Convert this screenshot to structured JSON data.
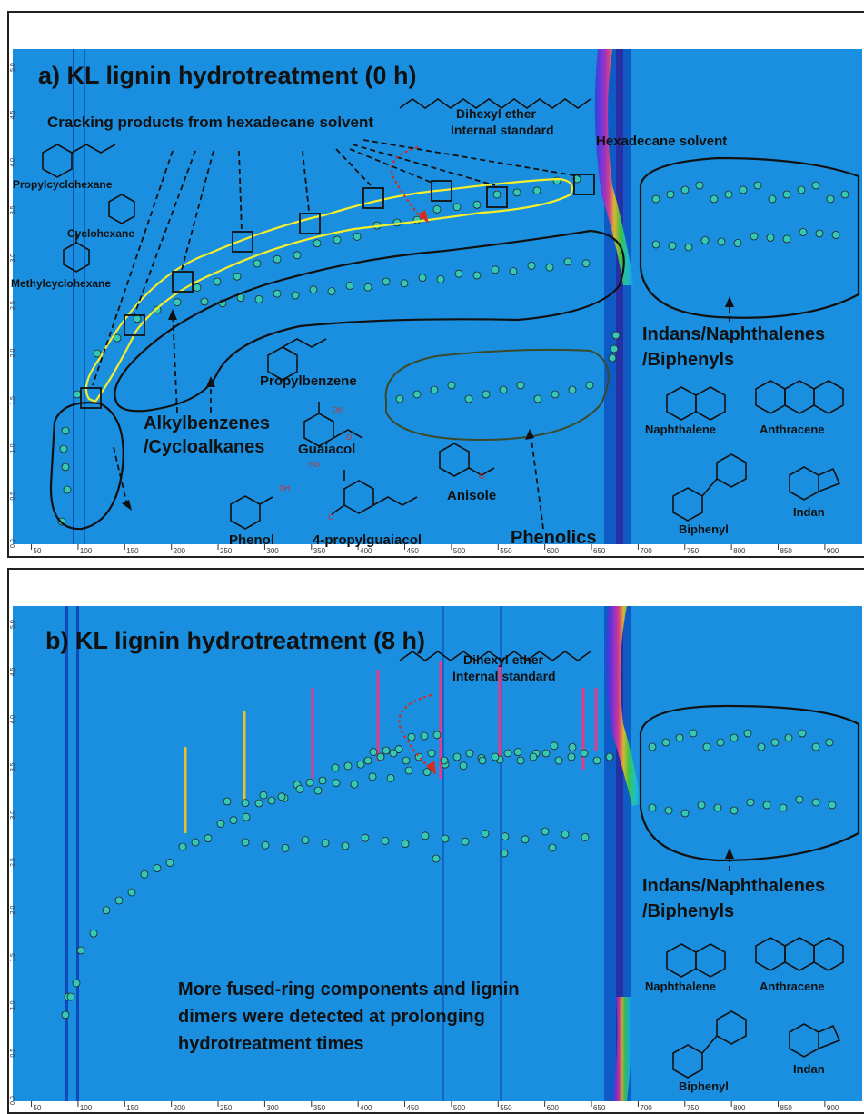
{
  "chart_data": [
    {
      "type": "scatter",
      "title": "a) KL lignin hydrotreatment (0 h)",
      "x_ticks": [
        "50",
        "100",
        "150",
        "200",
        "250",
        "300",
        "350",
        "400",
        "450",
        "500",
        "550",
        "600",
        "650",
        "700",
        "750",
        "800",
        "850",
        "900"
      ],
      "y_ticks": [
        "0.0",
        "0.5",
        "1.0",
        "1.5",
        "2.0",
        "2.5",
        "3.0",
        "3.5",
        "4.0",
        "4.5",
        "5.0"
      ],
      "xlim": [
        30,
        940
      ],
      "ylim": [
        0.0,
        5.2
      ],
      "annotations": {
        "cracking": "Cracking products from hexadecane solvent",
        "dihexyl": "Dihexyl ether",
        "internal_std": "Internal standard",
        "hexadecane": "Hexadecane solvent",
        "propylcyclohexane": "Propylcyclohexane",
        "cyclohexane": "Cyclohexane",
        "methylcyclohexane": "Methylcyclohexane",
        "propylbenzene": "Propylbenzene",
        "guaiacol": "Guaiacol",
        "oh": "OH",
        "ho": "HO",
        "o": "O",
        "alkyl_1": "Alkylbenzenes",
        "alkyl_2": "/Cycloalkanes",
        "phenol": "Phenol",
        "propylguaiacol": "4-propylguaiacol",
        "anisole": "Anisole",
        "phenolics": "Phenolics",
        "indans_1": "Indans/Naphthalenes",
        "indans_2": "/Biphenyls",
        "naphthalene": "Naphthalene",
        "anthracene": "Anthracene",
        "biphenyl": "Biphenyl",
        "indan": "Indan"
      }
    },
    {
      "type": "scatter",
      "title": "b) KL lignin hydrotreatment (8 h)",
      "x_ticks": [
        "50",
        "100",
        "150",
        "200",
        "250",
        "300",
        "350",
        "400",
        "450",
        "500",
        "550",
        "600",
        "650",
        "700",
        "750",
        "800",
        "850",
        "900"
      ],
      "y_ticks": [
        "0.0",
        "0.5",
        "1.0",
        "1.5",
        "2.0",
        "2.5",
        "3.0",
        "3.5",
        "4.0",
        "4.5",
        "5.0"
      ],
      "xlim": [
        30,
        940
      ],
      "ylim": [
        0.0,
        5.2
      ],
      "annotations": {
        "dihexyl": "Dihexyl ether",
        "internal_std": "Internal standard",
        "indans_1": "Indans/Naphthalenes",
        "indans_2": "/Biphenyls",
        "naphthalene": "Naphthalene",
        "anthracene": "Anthracene",
        "biphenyl": "Biphenyl",
        "indan": "Indan",
        "note_1": "More fused-ring components and lignin",
        "note_2": "dimers were detected at prolonging",
        "note_3": "hydrotreatment times"
      }
    }
  ],
  "colors": {
    "background": "#1a8fe0",
    "band_dark": "#0b3fa8",
    "marker": "#35c9b5",
    "highlight": "#f5ee2a",
    "arrow_red": "#d62b1e"
  }
}
